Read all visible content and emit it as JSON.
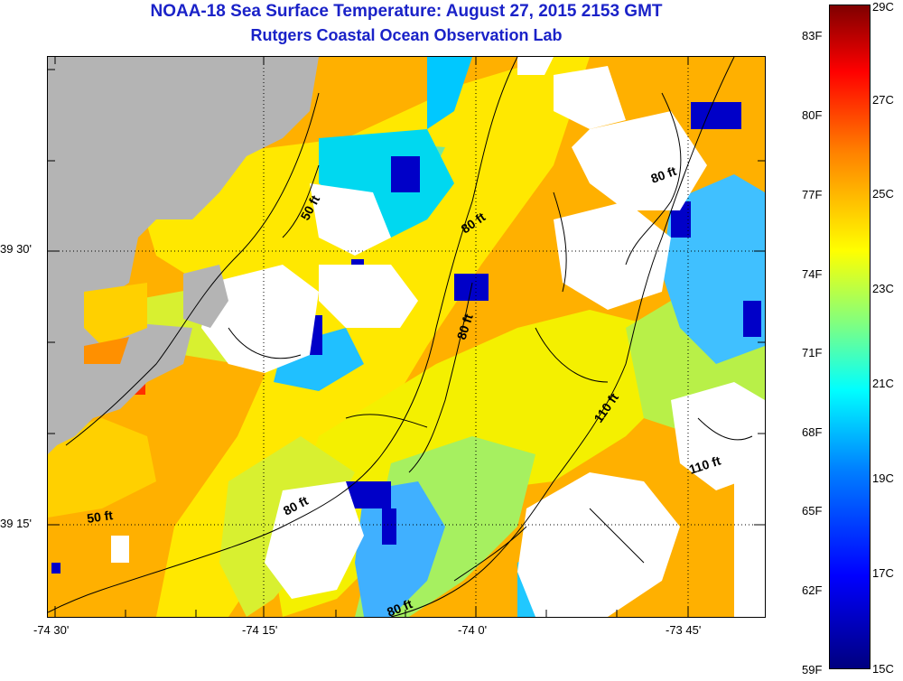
{
  "header": {
    "title": "NOAA-18 Sea Surface Temperature:  August 27, 2015 2153 GMT",
    "subtitle": "Rutgers Coastal Ocean Observation Lab"
  },
  "map": {
    "lon_ticks": [
      "-74 30'",
      "-74 15'",
      "-74 0'",
      "-73 45'"
    ],
    "lat_ticks": [
      "39 30'",
      "39 15'"
    ],
    "contour_labels": [
      "50 ft",
      "80 ft",
      "80 ft",
      "80 ft",
      "110 ft",
      "110 ft",
      "50 ft",
      "80 ft",
      "80 ft"
    ]
  },
  "colorbar": {
    "fahrenheit": [
      "83F",
      "80F",
      "77F",
      "74F",
      "71F",
      "68F",
      "65F",
      "62F",
      "59F"
    ],
    "celsius": [
      "29C",
      "27C",
      "25C",
      "23C",
      "21C",
      "19C",
      "17C",
      "15C"
    ]
  },
  "colors": {
    "title": "#1a22c8",
    "land": "#b4b4b4",
    "warm": "#ffb000",
    "cold": "#0000c8"
  }
}
